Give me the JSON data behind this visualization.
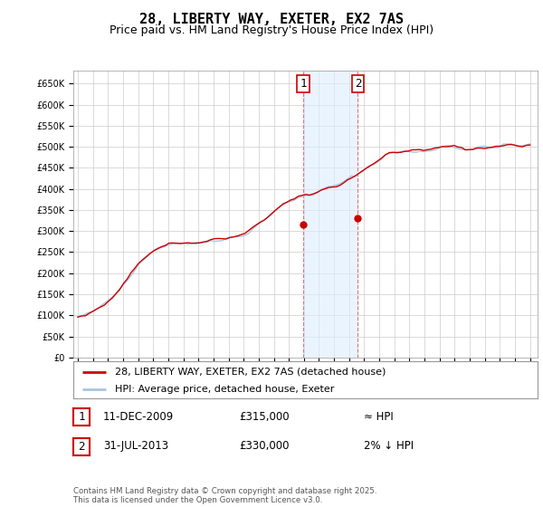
{
  "title": "28, LIBERTY WAY, EXETER, EX2 7AS",
  "subtitle": "Price paid vs. HM Land Registry's House Price Index (HPI)",
  "ylim": [
    0,
    680000
  ],
  "yticks": [
    0,
    50000,
    100000,
    150000,
    200000,
    250000,
    300000,
    350000,
    400000,
    450000,
    500000,
    550000,
    600000,
    650000
  ],
  "xlim_start": 1994.7,
  "xlim_end": 2025.5,
  "xticks": [
    1995,
    1996,
    1997,
    1998,
    1999,
    2000,
    2001,
    2002,
    2003,
    2004,
    2005,
    2006,
    2007,
    2008,
    2009,
    2010,
    2011,
    2012,
    2013,
    2014,
    2015,
    2016,
    2017,
    2018,
    2019,
    2020,
    2021,
    2022,
    2023,
    2024,
    2025
  ],
  "sale1_x": 2009.94,
  "sale1_y": 315000,
  "sale2_x": 2013.58,
  "sale2_y": 330000,
  "shade_x1": 2009.94,
  "shade_x2": 2013.58,
  "legend_red": "28, LIBERTY WAY, EXETER, EX2 7AS (detached house)",
  "legend_blue": "HPI: Average price, detached house, Exeter",
  "table_rows": [
    {
      "num": "1",
      "date": "11-DEC-2009",
      "price": "£315,000",
      "vs": "≈ HPI"
    },
    {
      "num": "2",
      "date": "31-JUL-2013",
      "price": "£330,000",
      "vs": "2% ↓ HPI"
    }
  ],
  "footnote": "Contains HM Land Registry data © Crown copyright and database right 2025.\nThis data is licensed under the Open Government Licence v3.0.",
  "background_color": "#ffffff",
  "grid_color": "#cccccc",
  "red_color": "#cc0000",
  "blue_color": "#aac4e0",
  "shade_color": "#ddeeff",
  "base_values": [
    95000,
    97000,
    100000,
    104000,
    108000,
    113000,
    119000,
    126000,
    134000,
    143000,
    153000,
    164000,
    176000,
    188000,
    200000,
    212000,
    223000,
    232000,
    240000,
    247000,
    253000,
    258000,
    263000,
    267000,
    270000,
    272000,
    273000,
    273000,
    272000,
    271000,
    270000,
    271000,
    272000,
    274000,
    276000,
    278000,
    280000,
    281000,
    282000,
    283000,
    284000,
    285000,
    287000,
    290000,
    294000,
    299000,
    305000,
    312000,
    320000,
    328000,
    336000,
    343000,
    350000,
    356000,
    362000,
    367000,
    371000,
    375000,
    378000,
    381000,
    384000,
    387000,
    390000,
    393000,
    396000,
    399000,
    402000,
    405000,
    408000,
    412000,
    416000,
    421000,
    426000,
    432000,
    438000,
    444000,
    450000,
    456000,
    462000,
    468000,
    474000,
    479000,
    483000,
    486000,
    488000,
    489000,
    489000,
    488000,
    487000,
    487000,
    487000,
    488000,
    490000,
    493000,
    496000,
    499000,
    501000,
    502000,
    502000,
    501000,
    499000,
    497000,
    496000,
    495000,
    495000,
    496000,
    497000,
    498000,
    499000,
    500000,
    501000,
    502000,
    503000,
    503000,
    503000,
    503000,
    503000,
    503000,
    503000,
    503000
  ],
  "noise_seed": 42,
  "noise_scale": 4500
}
